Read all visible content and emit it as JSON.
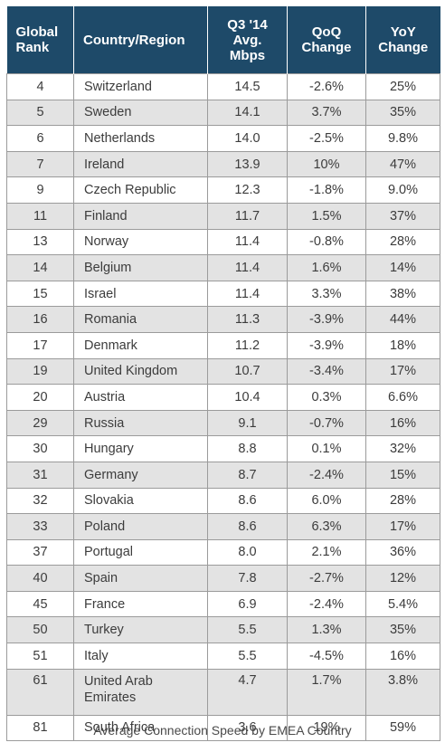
{
  "headers": {
    "rank": [
      "Global",
      "Rank"
    ],
    "country": "Country/Region",
    "speed": [
      "Q3 '14",
      "Avg.",
      "Mbps"
    ],
    "qoq": [
      "QoQ",
      "Change"
    ],
    "yoy": [
      "YoY",
      "Change"
    ]
  },
  "rows": [
    {
      "rank": "4",
      "country": "Switzerland",
      "speed": "14.5",
      "qoq": "-2.6%",
      "yoy": "25%"
    },
    {
      "rank": "5",
      "country": "Sweden",
      "speed": "14.1",
      "qoq": "3.7%",
      "yoy": "35%"
    },
    {
      "rank": "6",
      "country": "Netherlands",
      "speed": "14.0",
      "qoq": "-2.5%",
      "yoy": "9.8%"
    },
    {
      "rank": "7",
      "country": "Ireland",
      "speed": "13.9",
      "qoq": "10%",
      "yoy": "47%"
    },
    {
      "rank": "9",
      "country": "Czech Republic",
      "speed": "12.3",
      "qoq": "-1.8%",
      "yoy": "9.0%"
    },
    {
      "rank": "11",
      "country": "Finland",
      "speed": "11.7",
      "qoq": "1.5%",
      "yoy": "37%"
    },
    {
      "rank": "13",
      "country": "Norway",
      "speed": "11.4",
      "qoq": "-0.8%",
      "yoy": "28%"
    },
    {
      "rank": "14",
      "country": "Belgium",
      "speed": "11.4",
      "qoq": "1.6%",
      "yoy": "14%"
    },
    {
      "rank": "15",
      "country": "Israel",
      "speed": "11.4",
      "qoq": "3.3%",
      "yoy": "38%"
    },
    {
      "rank": "16",
      "country": "Romania",
      "speed": "11.3",
      "qoq": "-3.9%",
      "yoy": "44%"
    },
    {
      "rank": "17",
      "country": "Denmark",
      "speed": "11.2",
      "qoq": "-3.9%",
      "yoy": "18%"
    },
    {
      "rank": "19",
      "country": "United Kingdom",
      "speed": "10.7",
      "qoq": "-3.4%",
      "yoy": "17%"
    },
    {
      "rank": "20",
      "country": "Austria",
      "speed": "10.4",
      "qoq": "0.3%",
      "yoy": "6.6%"
    },
    {
      "rank": "29",
      "country": "Russia",
      "speed": "9.1",
      "qoq": "-0.7%",
      "yoy": "16%"
    },
    {
      "rank": "30",
      "country": "Hungary",
      "speed": "8.8",
      "qoq": "0.1%",
      "yoy": "32%"
    },
    {
      "rank": "31",
      "country": "Germany",
      "speed": "8.7",
      "qoq": "-2.4%",
      "yoy": "15%"
    },
    {
      "rank": "32",
      "country": "Slovakia",
      "speed": "8.6",
      "qoq": "6.0%",
      "yoy": "28%"
    },
    {
      "rank": "33",
      "country": "Poland",
      "speed": "8.6",
      "qoq": "6.3%",
      "yoy": "17%"
    },
    {
      "rank": "37",
      "country": "Portugal",
      "speed": "8.0",
      "qoq": "2.1%",
      "yoy": "36%"
    },
    {
      "rank": "40",
      "country": "Spain",
      "speed": "7.8",
      "qoq": "-2.7%",
      "yoy": "12%"
    },
    {
      "rank": "45",
      "country": "France",
      "speed": "6.9",
      "qoq": "-2.4%",
      "yoy": "5.4%"
    },
    {
      "rank": "50",
      "country": "Turkey",
      "speed": "5.5",
      "qoq": "1.3%",
      "yoy": "35%"
    },
    {
      "rank": "51",
      "country": "Italy",
      "speed": "5.5",
      "qoq": "-4.5%",
      "yoy": "16%"
    },
    {
      "rank": "61",
      "country": "United Arab Emirates",
      "speed": "4.7",
      "qoq": "1.7%",
      "yoy": "3.8%"
    },
    {
      "rank": "81",
      "country": "South Africa",
      "speed": "3.6",
      "qoq": "19%",
      "yoy": "59%"
    }
  ],
  "caption": "Average Connection Speed by EMEA Country"
}
